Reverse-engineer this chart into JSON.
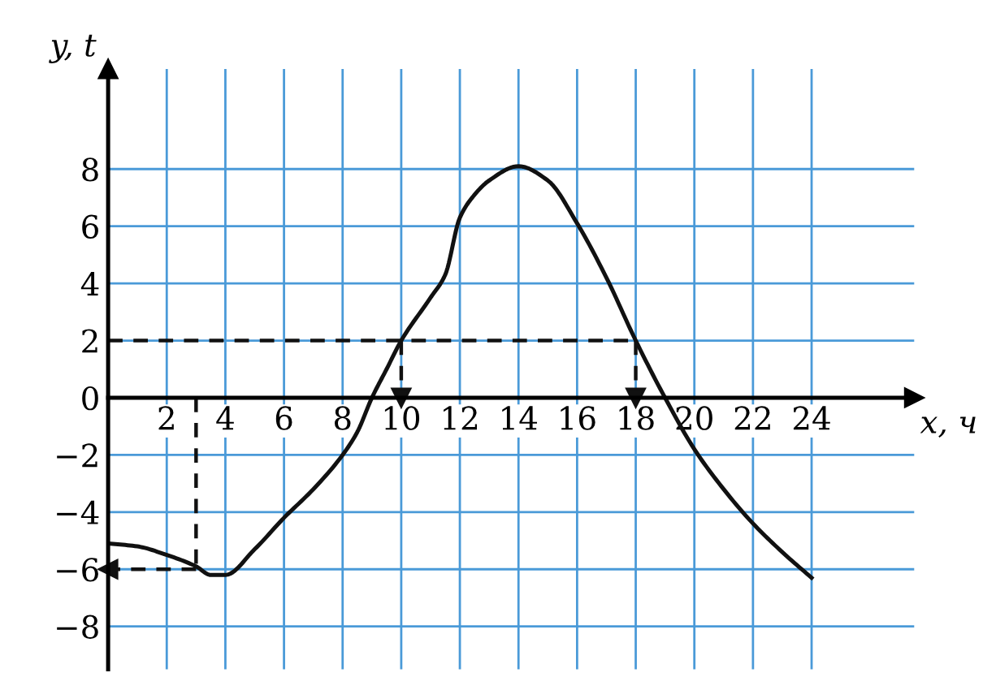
{
  "chart_data": {
    "type": "line",
    "xlabel": "x, ч",
    "ylabel": "y, t",
    "xlim": [
      0,
      27.5
    ],
    "ylim": [
      -9.5,
      11.5
    ],
    "xticks": [
      2,
      4,
      6,
      8,
      10,
      12,
      14,
      16,
      18,
      20,
      22,
      24
    ],
    "yticks": [
      -8,
      -6,
      -4,
      -2,
      0,
      2,
      4,
      6,
      8
    ],
    "grid": true,
    "legend": false,
    "series": [
      {
        "color": "#111111",
        "line_style": "solid",
        "x": [
          0,
          1,
          2,
          3,
          3.5,
          4,
          5,
          6,
          7,
          8,
          8.5,
          9,
          9.5,
          10,
          11,
          11.5,
          12,
          12.5,
          13,
          14,
          15,
          16,
          17,
          18,
          19,
          20,
          21,
          22,
          23,
          24
        ],
        "values": [
          -5.1,
          -5.2,
          -5.5,
          -5.9,
          -6.2,
          -6.2,
          -5.3,
          -4.2,
          -3.2,
          -2,
          -1.2,
          0,
          1,
          2,
          3.5,
          4.3,
          6.3,
          7.1,
          7.6,
          8.1,
          7.6,
          6.1,
          4.2,
          2,
          0,
          -1.8,
          -3.2,
          -4.4,
          -5.4,
          -6.3
        ]
      },
      {
        "color": "#111111",
        "line_style": "dashed",
        "x": [
          0,
          18
        ],
        "values": [
          2,
          2
        ]
      },
      {
        "color": "#111111",
        "line_style": "dashed",
        "marker": "triangle",
        "x": [
          10,
          10
        ],
        "values": [
          2,
          0
        ]
      },
      {
        "color": "#111111",
        "line_style": "dashed",
        "marker": "triangle",
        "x": [
          18,
          18
        ],
        "values": [
          2,
          0
        ]
      },
      {
        "color": "#111111",
        "line_style": "dashed",
        "x": [
          3,
          3
        ],
        "values": [
          0,
          -6
        ]
      },
      {
        "color": "#111111",
        "line_style": "dashed",
        "marker": "triangle",
        "x": [
          3,
          0
        ],
        "values": [
          -6,
          -6
        ]
      }
    ]
  }
}
